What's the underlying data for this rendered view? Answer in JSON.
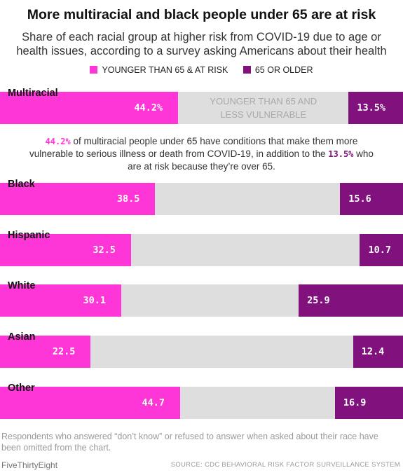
{
  "title": "More multiracial and black people under 65 are at risk",
  "subtitle_line1": "Share of each racial group at higher risk from COVID-19 due to age or",
  "subtitle_line2": "health issues, according to a survey asking Americans about their health",
  "legend": [
    {
      "label": "YOUNGER THAN 65 & AT RISK",
      "color": "#ff36d7"
    },
    {
      "label": "65 OR OLDER",
      "color": "#80117d"
    }
  ],
  "middle_label_line1": "YOUNGER THAN 65 AND",
  "middle_label_line2": "LESS VULNERABLE",
  "annotation": {
    "value_young": "44.2%",
    "text1": " of multiracial people under 65 have conditions that make them more vulnerable to serious illness or death from COVID-19, in addition to the ",
    "value_old": "13.5%",
    "text2": " who are at risk because they’re over 65."
  },
  "footnote": "Respondents who answered “don’t know” or refused to answer when asked about their race have been omitted from the chart.",
  "brand": "FiveThirtyEight",
  "source": "SOURCE: CDC BEHAVIORAL RISK FACTOR SURVEILLANCE SYSTEM",
  "chart_data": {
    "type": "bar",
    "orientation": "horizontal",
    "stacked": true,
    "xlim": [
      0,
      100
    ],
    "categories": [
      "Multiracial",
      "Black",
      "Hispanic",
      "White",
      "Asian",
      "Other"
    ],
    "series": [
      {
        "name": "YOUNGER THAN 65 & AT RISK",
        "values": [
          44.2,
          38.5,
          32.5,
          30.1,
          22.5,
          44.7
        ],
        "labels": [
          "44.2%",
          "38.5",
          "32.5",
          "30.1",
          "22.5",
          "44.7"
        ],
        "color": "#ff36d7"
      },
      {
        "name": "65 OR OLDER",
        "values": [
          13.5,
          15.6,
          10.7,
          25.9,
          12.4,
          16.9
        ],
        "labels": [
          "13.5%",
          "15.6",
          "10.7",
          "25.9",
          "12.4",
          "16.9"
        ],
        "color": "#80117d"
      }
    ]
  }
}
